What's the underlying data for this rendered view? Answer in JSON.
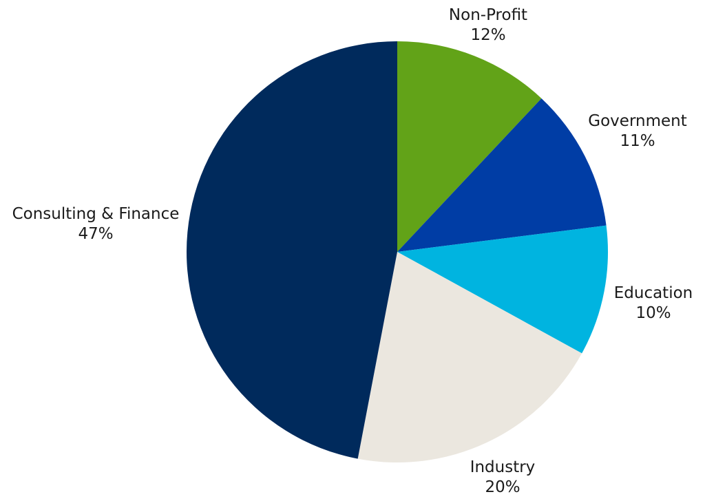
{
  "chart_data": {
    "type": "pie",
    "title": "",
    "start": "top",
    "direction": "clockwise",
    "slices": [
      {
        "label": "Non-Profit",
        "value": 12,
        "value_label": "12%",
        "color": "#62a318"
      },
      {
        "label": "Government",
        "value": 11,
        "value_label": "11%",
        "color": "#003da5"
      },
      {
        "label": "Education",
        "value": 10,
        "value_label": "10%",
        "color": "#00b4e0"
      },
      {
        "label": "Industry",
        "value": 20,
        "value_label": "20%",
        "color": "#ebe7df"
      },
      {
        "label": "Consulting & Finance",
        "value": 47,
        "value_label": "47%",
        "color": "#002a5c"
      }
    ]
  }
}
